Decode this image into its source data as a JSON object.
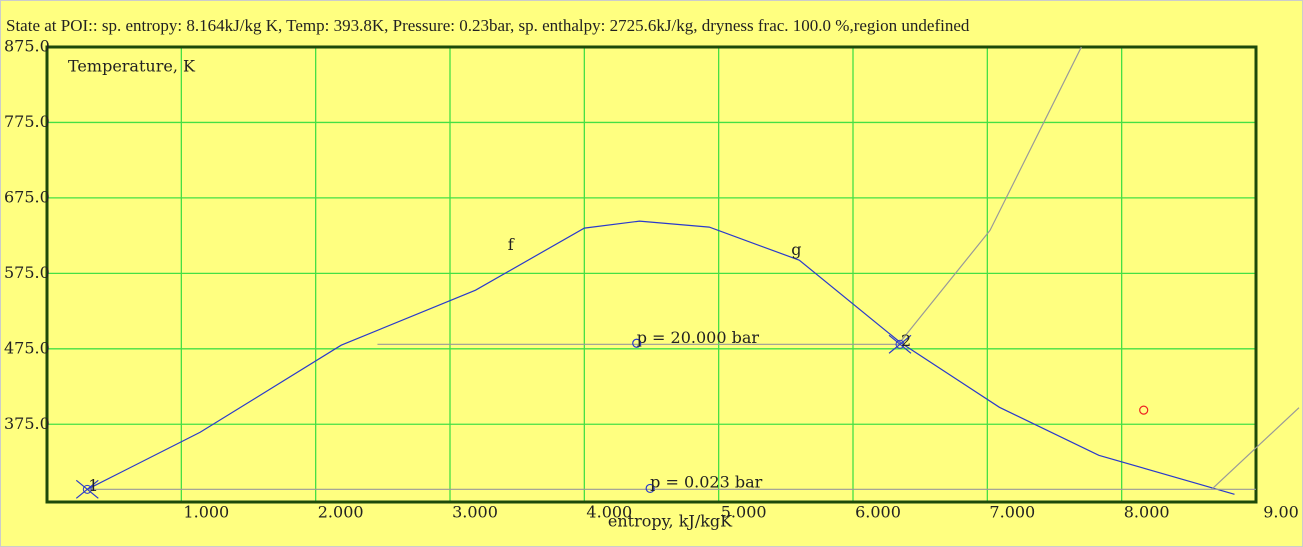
{
  "chart_data": {
    "type": "line",
    "title": "State at POI:: sp. entropy: 8.164kJ/kg K, Temp: 393.8K, Pressure: 0.23bar, sp. enthalpy: 2725.6kJ/kg, dryness frac. 100.0 %,region undefined",
    "ylabel": "Temperature, K",
    "xlabel": "entropy, kJ/kgK",
    "xlim": [
      0,
      9
    ],
    "ylim": [
      272,
      875
    ],
    "xticks": [
      {
        "value": 1,
        "label": "1.000"
      },
      {
        "value": 2,
        "label": "2.000"
      },
      {
        "value": 3,
        "label": "3.000"
      },
      {
        "value": 4,
        "label": "4.000"
      },
      {
        "value": 5,
        "label": "5.000"
      },
      {
        "value": 6,
        "label": "6.000"
      },
      {
        "value": 7,
        "label": "7.000"
      },
      {
        "value": 8,
        "label": "8.000"
      },
      {
        "value": 9,
        "label": "9.00"
      }
    ],
    "yticks": [
      {
        "value": 875,
        "label": "875.0"
      },
      {
        "value": 775,
        "label": "775.0"
      },
      {
        "value": 675,
        "label": "675.0"
      },
      {
        "value": 575,
        "label": "575.0"
      },
      {
        "value": 475,
        "label": "475.0"
      },
      {
        "value": 375,
        "label": "375.0"
      }
    ],
    "grid": true,
    "series": [
      {
        "color": "#2a3acc",
        "x": [
          0.3,
          1.14,
          2.19,
          3.19,
          4.0,
          4.41,
          4.93,
          5.6,
          6.35,
          7.09,
          7.83,
          8.84
        ],
        "values": [
          288.8,
          364.4,
          479.8,
          552.7,
          635,
          644.2,
          636.3,
          592.5,
          483.7,
          397.5,
          333.9,
          282.2
        ]
      },
      {
        "color": "#999999",
        "x": [
          2.46,
          6.35
        ],
        "values": [
          481,
          481
        ]
      },
      {
        "color": "#999999",
        "x": [
          0.3,
          9.0
        ],
        "values": [
          288.8,
          288.8
        ]
      },
      {
        "color": "#999999",
        "x": [
          6.35,
          7.02,
          7.7
        ],
        "values": [
          483.7,
          632,
          875
        ]
      },
      {
        "color": "#999999",
        "x": [
          8.67,
          9.32
        ],
        "values": [
          288.8,
          397
        ]
      }
    ],
    "states": [
      {
        "label": "1",
        "x": 0.3,
        "y": 288.8
      },
      {
        "label": "2",
        "x": 6.35,
        "y": 481
      }
    ],
    "points": [
      {
        "x": 4.39,
        "y": 482.4,
        "color": "#2a3acc"
      },
      {
        "x": 4.49,
        "y": 290,
        "color": "#2a3acc"
      },
      {
        "x": 8.164,
        "y": 393.8,
        "color": "#ee2222"
      }
    ],
    "annotations": [
      {
        "text": "f",
        "x": 3.43,
        "y": 612
      },
      {
        "text": "g",
        "x": 5.54,
        "y": 605
      },
      {
        "text": "p = 20.000 bar",
        "x": 4.39,
        "y": 489
      },
      {
        "text": "p = 0.023 bar",
        "x": 4.49,
        "y": 297
      }
    ]
  }
}
